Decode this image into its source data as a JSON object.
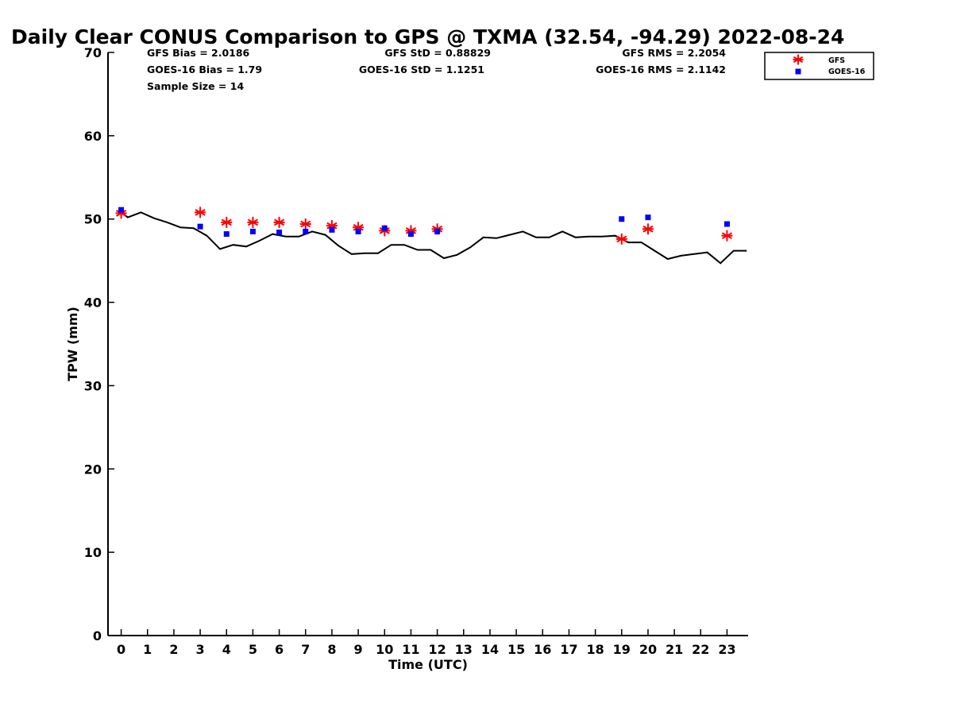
{
  "chart_data": {
    "type": "scatter",
    "title": "Daily Clear CONUS Comparison to GPS @ TXMA (32.54, -94.29) 2022-08-24",
    "xlabel": "Time (UTC)",
    "ylabel": "TPW (mm)",
    "xlim": [
      -0.5,
      23.8
    ],
    "ylim": [
      0,
      70
    ],
    "x_ticks": [
      "0",
      "1",
      "2",
      "3",
      "4",
      "5",
      "6",
      "7",
      "8",
      "9",
      "10",
      "11",
      "12",
      "13",
      "14",
      "15",
      "16",
      "17",
      "18",
      "19",
      "20",
      "21",
      "22",
      "23"
    ],
    "y_ticks": [
      "0",
      "10",
      "20",
      "30",
      "40",
      "50",
      "60",
      "70"
    ],
    "grid": false,
    "legend_position": "top-right",
    "stats": {
      "gfs_bias": "GFS Bias = 2.0186",
      "goes_bias": "GOES-16 Bias = 1.79",
      "sample_size": "Sample Size = 14",
      "gfs_std": "GFS StD = 0.88829",
      "goes_std": "GOES-16 StD = 1.1251",
      "gfs_rms": "GFS RMS = 2.2054",
      "goes_rms": "GOES-16 RMS = 2.1142"
    },
    "series": [
      {
        "name": "GFS",
        "marker": "asterisk",
        "color": "#ff0000",
        "x": [
          0,
          3,
          4,
          5,
          6,
          7,
          8,
          9,
          10,
          11,
          12,
          19,
          20,
          23
        ],
        "y": [
          50.7,
          50.8,
          49.6,
          49.6,
          49.6,
          49.4,
          49.2,
          49.0,
          48.6,
          48.6,
          48.8,
          47.6,
          48.8,
          48.0
        ]
      },
      {
        "name": "GOES-16",
        "marker": "square",
        "color": "#0000ff",
        "x": [
          0,
          3,
          4,
          5,
          6,
          7,
          8,
          9,
          10,
          11,
          12,
          19,
          20,
          23
        ],
        "y": [
          51.1,
          49.1,
          48.2,
          48.5,
          48.4,
          48.5,
          48.7,
          48.5,
          48.9,
          48.2,
          48.5,
          50.0,
          50.2,
          49.4
        ]
      },
      {
        "name": "GPS",
        "marker": "line",
        "color": "#000000",
        "x": [
          0,
          0.25,
          0.75,
          1.25,
          1.75,
          2.25,
          2.75,
          3.25,
          3.75,
          4.25,
          4.75,
          5.25,
          5.75,
          6.25,
          6.75,
          7.25,
          7.75,
          8.25,
          8.75,
          9.25,
          9.75,
          10.25,
          10.75,
          11.25,
          11.75,
          12.25,
          12.75,
          13.25,
          13.75,
          14.25,
          14.75,
          15.25,
          15.75,
          16.25,
          16.75,
          17.25,
          17.75,
          18.25,
          18.75,
          19.25,
          19.75,
          20.25,
          20.75,
          21.25,
          21.75,
          22.25,
          22.75,
          23.25,
          23.75
        ],
        "y": [
          50.8,
          50.2,
          50.8,
          50.1,
          49.6,
          49.0,
          48.9,
          48.0,
          46.4,
          46.9,
          46.7,
          47.4,
          48.2,
          47.9,
          47.9,
          48.5,
          48.1,
          46.8,
          45.8,
          45.9,
          45.9,
          46.9,
          46.9,
          46.3,
          46.3,
          45.3,
          45.7,
          46.6,
          47.8,
          47.7,
          48.1,
          48.5,
          47.8,
          47.8,
          48.5,
          47.8,
          47.9,
          47.9,
          48.0,
          47.2,
          47.2,
          46.2,
          45.2,
          45.6,
          45.8,
          46.0,
          44.7,
          46.2,
          46.2
        ]
      }
    ]
  }
}
